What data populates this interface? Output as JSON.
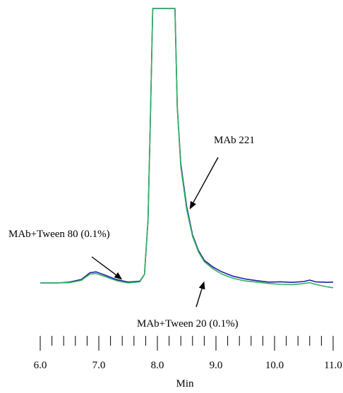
{
  "chart_data": {
    "type": "line",
    "xlabel": "Min",
    "ylabel": "",
    "xlim": [
      6.0,
      11.0
    ],
    "ylim": [
      0,
      100
    ],
    "x_ticks_major": [
      6.0,
      7.0,
      8.0,
      9.0,
      10.0,
      11.0
    ],
    "x_tick_labels": [
      "6.0",
      "7.0",
      "8.0",
      "9.0",
      "10.0",
      "11.0"
    ],
    "minor_tick_step": 0.2,
    "grid": false,
    "legend": "none",
    "series": [
      {
        "color": "#1f1fa8",
        "points": [
          [
            6.0,
            3.0
          ],
          [
            6.3,
            3.0
          ],
          [
            6.5,
            3.3
          ],
          [
            6.7,
            4.2
          ],
          [
            6.85,
            6.6
          ],
          [
            6.95,
            6.9
          ],
          [
            7.1,
            5.8
          ],
          [
            7.3,
            4.2
          ],
          [
            7.5,
            3.3
          ],
          [
            7.7,
            3.6
          ],
          [
            7.78,
            6.0
          ],
          [
            7.84,
            25.0
          ],
          [
            7.88,
            60.0
          ],
          [
            7.92,
            100.0
          ],
          [
            8.3,
            100.0
          ],
          [
            8.34,
            65.0
          ],
          [
            8.4,
            45.0
          ],
          [
            8.5,
            30.0
          ],
          [
            8.6,
            20.0
          ],
          [
            8.7,
            14.5
          ],
          [
            8.8,
            11.0
          ],
          [
            8.95,
            8.6
          ],
          [
            9.1,
            6.9
          ],
          [
            9.3,
            5.3
          ],
          [
            9.5,
            4.4
          ],
          [
            9.7,
            3.8
          ],
          [
            9.9,
            3.3
          ],
          [
            10.1,
            3.4
          ],
          [
            10.3,
            3.2
          ],
          [
            10.5,
            3.5
          ],
          [
            10.6,
            4.0
          ],
          [
            10.7,
            3.4
          ],
          [
            10.9,
            3.2
          ],
          [
            11.0,
            3.3
          ]
        ]
      },
      {
        "color": "#2fb35a",
        "points": [
          [
            6.0,
            3.0
          ],
          [
            6.3,
            3.0
          ],
          [
            6.5,
            3.1
          ],
          [
            6.7,
            3.9
          ],
          [
            6.85,
            6.1
          ],
          [
            6.95,
            6.3
          ],
          [
            7.1,
            5.3
          ],
          [
            7.3,
            3.8
          ],
          [
            7.5,
            3.0
          ],
          [
            7.7,
            3.4
          ],
          [
            7.78,
            6.0
          ],
          [
            7.84,
            25.0
          ],
          [
            7.88,
            60.0
          ],
          [
            7.92,
            100.0
          ],
          [
            8.3,
            100.0
          ],
          [
            8.34,
            65.0
          ],
          [
            8.4,
            44.0
          ],
          [
            8.5,
            29.0
          ],
          [
            8.6,
            19.5
          ],
          [
            8.7,
            14.0
          ],
          [
            8.8,
            10.5
          ],
          [
            8.95,
            8.0
          ],
          [
            9.1,
            6.1
          ],
          [
            9.3,
            4.6
          ],
          [
            9.5,
            3.7
          ],
          [
            9.7,
            3.3
          ],
          [
            9.9,
            2.8
          ],
          [
            10.1,
            2.5
          ],
          [
            10.3,
            2.4
          ],
          [
            10.5,
            2.8
          ],
          [
            10.6,
            3.1
          ],
          [
            10.7,
            2.5
          ],
          [
            10.9,
            1.6
          ],
          [
            11.0,
            1.3
          ]
        ]
      }
    ],
    "annotations": [
      {
        "text": "MAb 221",
        "target": [
          8.55,
          29.0
        ]
      },
      {
        "text": "MAb+Tween  80 (0.1%)",
        "target": [
          7.4,
          4.2
        ]
      },
      {
        "text": "MAb+Tween  20 (0.1%)",
        "target": [
          8.8,
          3.6
        ]
      }
    ]
  }
}
